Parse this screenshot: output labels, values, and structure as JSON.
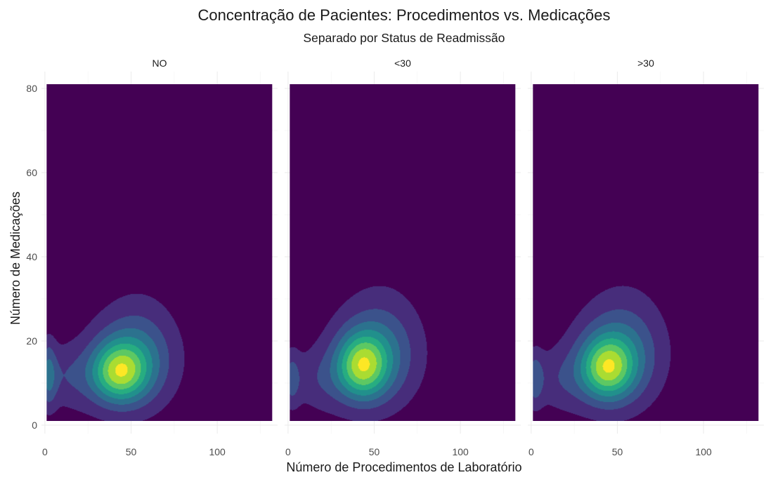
{
  "chart_data": {
    "type": "heatmap",
    "subtype": "filled-density-contour",
    "title": "Concentração de Pacientes: Procedimentos vs. Medicações",
    "subtitle": "Separado por Status de Readmissão",
    "xlabel": "Número de Procedimentos de Laboratório",
    "ylabel": "Número de Medicações",
    "facets": [
      "NO",
      "<30",
      ">30"
    ],
    "x_ticks": [
      "0",
      "50",
      "100"
    ],
    "y_ticks": [
      "0",
      "20",
      "40",
      "60",
      "80"
    ],
    "xlim": [
      -2,
      135
    ],
    "ylim": [
      -2,
      84
    ],
    "density_domain": {
      "x": [
        1,
        132
      ],
      "y": [
        1,
        81
      ]
    },
    "grid": true,
    "color_scale": "viridis",
    "level_colors": [
      "#440154",
      "#472D7B",
      "#3B528B",
      "#2C728E",
      "#21908C",
      "#27AD81",
      "#5DC863",
      "#AADC32",
      "#FDE725"
    ],
    "density_components": [
      [
        {
          "x": 43,
          "y": 12.5,
          "sx": 11,
          "sy": 4.8,
          "w": 1.0
        },
        {
          "x": 50,
          "y": 15,
          "sx": 17,
          "sy": 7.5,
          "w": 0.55
        },
        {
          "x": 55,
          "y": 20,
          "sx": 15,
          "sy": 9.5,
          "w": 0.18
        },
        {
          "x": 2,
          "y": 11,
          "sx": 3.5,
          "sy": 5,
          "w": 0.46
        },
        {
          "x": 10,
          "y": 12,
          "sx": 9,
          "sy": 5,
          "w": 0.2
        },
        {
          "x": 22,
          "y": 10,
          "sx": 12,
          "sy": 6,
          "w": 0.12
        },
        {
          "x": 2,
          "y": 17,
          "sx": 3,
          "sy": 4,
          "w": 0.12
        }
      ],
      [
        {
          "x": 43,
          "y": 14,
          "sx": 10,
          "sy": 5.2,
          "w": 1.0
        },
        {
          "x": 50,
          "y": 16,
          "sx": 17,
          "sy": 8,
          "w": 0.52
        },
        {
          "x": 55,
          "y": 22,
          "sx": 16,
          "sy": 10,
          "w": 0.16
        },
        {
          "x": 2,
          "y": 11,
          "sx": 3.5,
          "sy": 4.5,
          "w": 0.36
        },
        {
          "x": 14,
          "y": 11,
          "sx": 12,
          "sy": 5,
          "w": 0.16
        },
        {
          "x": 24,
          "y": 10,
          "sx": 12,
          "sy": 6,
          "w": 0.1
        }
      ],
      [
        {
          "x": 44,
          "y": 13.5,
          "sx": 10.5,
          "sy": 5,
          "w": 1.0
        },
        {
          "x": 50,
          "y": 16,
          "sx": 17,
          "sy": 8,
          "w": 0.54
        },
        {
          "x": 55,
          "y": 22,
          "sx": 16,
          "sy": 10,
          "w": 0.16
        },
        {
          "x": 2,
          "y": 11,
          "sx": 3.5,
          "sy": 4.5,
          "w": 0.4
        },
        {
          "x": 13,
          "y": 11,
          "sx": 11,
          "sy": 5,
          "w": 0.18
        },
        {
          "x": 24,
          "y": 10,
          "sx": 12,
          "sy": 6,
          "w": 0.1
        }
      ]
    ]
  }
}
